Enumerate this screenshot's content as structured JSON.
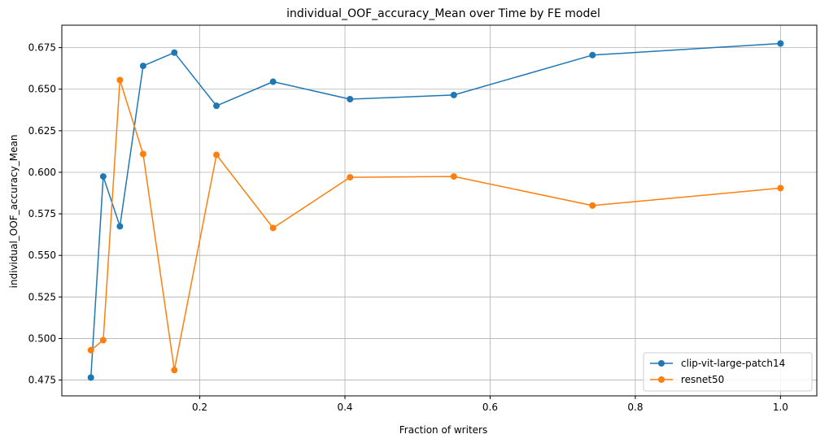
{
  "chart_data": {
    "type": "line",
    "title": "individual_OOF_accuracy_Mean over Time by FE model",
    "xlabel": "Fraction of writers",
    "ylabel": "individual_OOF_accuracy_Mean",
    "xlim": [
      0.01,
      1.05
    ],
    "ylim": [
      0.4655,
      0.6885
    ],
    "xticks": [
      0.2,
      0.4,
      0.6,
      0.8,
      1.0
    ],
    "xtick_labels": [
      "0.2",
      "0.4",
      "0.6",
      "0.8",
      "1.0"
    ],
    "yticks": [
      0.475,
      0.5,
      0.525,
      0.55,
      0.575,
      0.6,
      0.625,
      0.65,
      0.675
    ],
    "ytick_labels": [
      "0.475",
      "0.500",
      "0.525",
      "0.550",
      "0.575",
      "0.600",
      "0.625",
      "0.650",
      "0.675"
    ],
    "grid": true,
    "legend_position": "lower-right",
    "x": [
      0.05,
      0.067,
      0.09,
      0.122,
      0.165,
      0.223,
      0.301,
      0.407,
      0.55,
      0.741,
      1.0
    ],
    "series": [
      {
        "name": "clip-vit-large-patch14",
        "color": "#1f77b4",
        "values": [
          0.4765,
          0.5975,
          0.5675,
          0.664,
          0.672,
          0.64,
          0.6545,
          0.644,
          0.6465,
          0.6705,
          0.6775
        ]
      },
      {
        "name": "resnet50",
        "color": "#ff7f0e",
        "values": [
          0.493,
          0.499,
          0.6555,
          0.611,
          0.481,
          0.6105,
          0.5665,
          0.597,
          0.5975,
          0.58,
          0.5905
        ]
      }
    ]
  }
}
